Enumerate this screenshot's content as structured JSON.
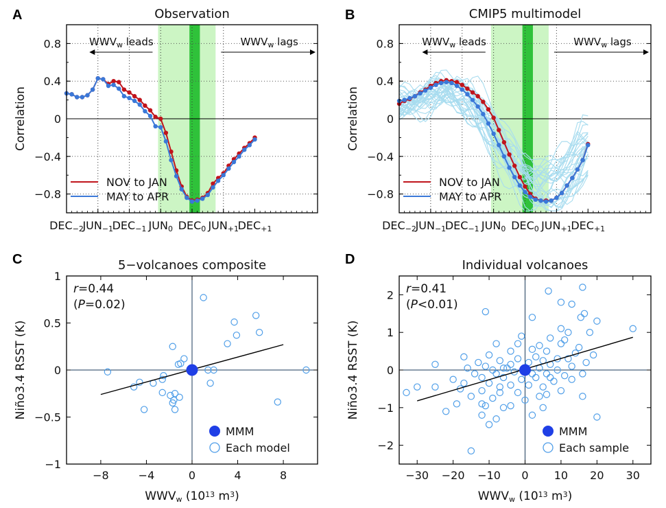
{
  "colors": {
    "nov_jan": "#c0141c",
    "may_apr": "#3a78d8",
    "models": "#a8dcef",
    "shade_light": "#ccf5c4",
    "shade_dark": "#2fc23a",
    "mmm": "#1f3fe6",
    "circle": "#4f9ee8",
    "axis": "#000000"
  },
  "chart_data": [
    {
      "id": "A",
      "type": "line",
      "panel_label": "A",
      "title": "Observation",
      "ylabel": "Correlation",
      "ylim": [
        -1,
        1
      ],
      "yticks": [
        -0.8,
        -0.4,
        0,
        0.4,
        0.8
      ],
      "ytick_labels": [
        "−0.8",
        "−0.4",
        "0",
        "0.4",
        "0.8"
      ],
      "xlim": [
        0,
        48
      ],
      "xticks": [
        0,
        6,
        12,
        18,
        24,
        30,
        36
      ],
      "xtick_labels": [
        [
          "DEC",
          "−2"
        ],
        [
          "JUN",
          "−1"
        ],
        [
          "DEC",
          "−1"
        ],
        [
          "JUN",
          "0"
        ],
        [
          "DEC",
          "0"
        ],
        [
          "JUN",
          "+1"
        ],
        [
          "DEC",
          "+1"
        ]
      ],
      "shade_light": [
        17.5,
        28.5
      ],
      "shade_dark": [
        23.5,
        25.5
      ],
      "grid": true,
      "annotation_leads": "WWV_w leads",
      "annotation_lags": "WWV_w lags",
      "legend": [
        "NOV to JAN",
        "MAY to APR"
      ],
      "legend_position": "bottom-left",
      "series": [
        {
          "name": "NOV to JAN",
          "color_key": "nov_jan",
          "x": [
            0,
            1,
            2,
            3,
            4,
            5,
            6,
            7,
            8,
            9,
            10,
            11,
            12,
            13,
            14,
            15,
            16,
            17,
            18,
            19,
            20,
            21,
            22,
            23,
            24,
            25,
            26,
            27,
            28,
            29,
            30,
            31,
            32,
            33,
            34,
            35,
            36
          ],
          "values": [
            0.27,
            0.26,
            0.23,
            0.23,
            0.25,
            0.31,
            0.43,
            0.42,
            0.37,
            0.4,
            0.39,
            0.31,
            0.28,
            0.24,
            0.2,
            0.14,
            0.09,
            0.02,
            0.0,
            -0.15,
            -0.35,
            -0.55,
            -0.72,
            -0.83,
            -0.87,
            -0.86,
            -0.84,
            -0.79,
            -0.69,
            -0.63,
            -0.58,
            -0.5,
            -0.43,
            -0.37,
            -0.31,
            -0.26,
            -0.2
          ]
        },
        {
          "name": "MAY to APR",
          "color_key": "may_apr",
          "x": [
            0,
            1,
            2,
            3,
            4,
            5,
            6,
            7,
            8,
            9,
            10,
            11,
            12,
            13,
            14,
            15,
            16,
            17,
            18,
            19,
            20,
            21,
            22,
            23,
            24,
            25,
            26,
            27,
            28,
            29,
            30,
            31,
            32,
            33,
            34,
            35,
            36
          ],
          "values": [
            0.27,
            0.26,
            0.23,
            0.23,
            0.25,
            0.31,
            0.43,
            0.42,
            0.35,
            0.36,
            0.32,
            0.24,
            0.22,
            0.19,
            0.15,
            0.08,
            0.03,
            -0.08,
            -0.09,
            -0.24,
            -0.44,
            -0.61,
            -0.75,
            -0.84,
            -0.88,
            -0.87,
            -0.85,
            -0.81,
            -0.73,
            -0.66,
            -0.6,
            -0.53,
            -0.46,
            -0.4,
            -0.33,
            -0.28,
            -0.22
          ]
        }
      ]
    },
    {
      "id": "B",
      "type": "line",
      "panel_label": "B",
      "title": "CMIP5 multimodel",
      "ylabel": "Correlation",
      "ylim": [
        -1,
        1
      ],
      "yticks": [
        -0.8,
        -0.4,
        0,
        0.4,
        0.8
      ],
      "ytick_labels": [
        "−0.8",
        "−0.4",
        "0",
        "0.4",
        "0.8"
      ],
      "xlim": [
        0,
        48
      ],
      "xticks": [
        0,
        6,
        12,
        18,
        24,
        30,
        36
      ],
      "xtick_labels": [
        [
          "DEC",
          "−2"
        ],
        [
          "JUN",
          "−1"
        ],
        [
          "DEC",
          "−1"
        ],
        [
          "JUN",
          "0"
        ],
        [
          "DEC",
          "0"
        ],
        [
          "JUN",
          "+1"
        ],
        [
          "DEC",
          "+1"
        ]
      ],
      "shade_light": [
        17.5,
        28.5
      ],
      "shade_dark": [
        23.5,
        25.5
      ],
      "grid": true,
      "annotation_leads": "WWV_w leads",
      "annotation_lags": "WWV_w lags",
      "legend": [
        "NOV to JAN",
        "MAY to APR"
      ],
      "legend_position": "bottom-left",
      "series": [
        {
          "name": "NOV to JAN",
          "color_key": "nov_jan",
          "x": [
            0,
            1,
            2,
            3,
            4,
            5,
            6,
            7,
            8,
            9,
            10,
            11,
            12,
            13,
            14,
            15,
            16,
            17,
            18,
            19,
            20,
            21,
            22,
            23,
            24,
            25,
            26,
            27,
            28,
            29,
            30,
            31,
            32,
            33,
            34,
            35,
            36
          ],
          "values": [
            0.16,
            0.19,
            0.21,
            0.24,
            0.28,
            0.31,
            0.35,
            0.38,
            0.4,
            0.41,
            0.4,
            0.39,
            0.36,
            0.32,
            0.28,
            0.24,
            0.18,
            0.1,
            0.01,
            -0.12,
            -0.25,
            -0.38,
            -0.5,
            -0.62,
            -0.72,
            -0.8,
            -0.85,
            -0.87,
            -0.87,
            -0.87,
            -0.84,
            -0.79,
            -0.71,
            -0.63,
            -0.54,
            -0.44,
            -0.27
          ]
        },
        {
          "name": "MAY to APR",
          "color_key": "may_apr",
          "x": [
            0,
            1,
            2,
            3,
            4,
            5,
            6,
            7,
            8,
            9,
            10,
            11,
            12,
            13,
            14,
            15,
            16,
            17,
            18,
            19,
            20,
            21,
            22,
            23,
            24,
            25,
            26,
            27,
            28,
            29,
            30,
            31,
            32,
            33,
            34,
            35,
            36
          ],
          "values": [
            0.19,
            0.2,
            0.22,
            0.24,
            0.27,
            0.3,
            0.33,
            0.36,
            0.38,
            0.39,
            0.38,
            0.35,
            0.31,
            0.26,
            0.2,
            0.13,
            0.05,
            -0.05,
            -0.16,
            -0.28,
            -0.4,
            -0.52,
            -0.62,
            -0.71,
            -0.78,
            -0.83,
            -0.86,
            -0.87,
            -0.88,
            -0.87,
            -0.84,
            -0.79,
            -0.71,
            -0.63,
            -0.54,
            -0.44,
            -0.28
          ]
        }
      ],
      "model_members": 30
    },
    {
      "id": "C",
      "type": "scatter",
      "panel_label": "C",
      "title": "5−volcanoes composite",
      "xlabel_main": "WWV",
      "xlabel_sub": "w",
      "xlabel_units_pre": "(10",
      "xlabel_units_exp": "13",
      "xlabel_units_post": " m",
      "xlabel_units_exp2": "3",
      "xlabel_units_close": ")",
      "ylabel": "Niño3.4 RSST (K)",
      "xlim": [
        -11,
        11
      ],
      "ylim": [
        -1,
        1
      ],
      "xticks": [
        -8,
        -4,
        0,
        4,
        8
      ],
      "xtick_labels": [
        "−8",
        "−4",
        "0",
        "4",
        "8"
      ],
      "yticks": [
        -1,
        -0.5,
        0,
        0.5,
        1
      ],
      "ytick_labels": [
        "−1",
        "−0.5",
        "0",
        "0.5",
        "1"
      ],
      "stat_r": "0.44",
      "stat_p_op": "=",
      "stat_p": "0.02",
      "legend": [
        "MMM",
        "Each model"
      ],
      "legend_position": "bottom-right",
      "fit": {
        "x": [
          -8,
          8
        ],
        "y": [
          -0.26,
          0.27
        ]
      },
      "mmm": {
        "x": 0,
        "y": 0
      },
      "points": [
        {
          "x": 1.0,
          "y": 0.77
        },
        {
          "x": 5.6,
          "y": 0.58
        },
        {
          "x": 3.7,
          "y": 0.51
        },
        {
          "x": 5.9,
          "y": 0.4
        },
        {
          "x": 3.9,
          "y": 0.37
        },
        {
          "x": 3.1,
          "y": 0.28
        },
        {
          "x": -1.7,
          "y": 0.25
        },
        {
          "x": -0.7,
          "y": 0.12
        },
        {
          "x": -1.2,
          "y": 0.06
        },
        {
          "x": -1.0,
          "y": 0.07
        },
        {
          "x": 1.4,
          "y": 0.0
        },
        {
          "x": 1.9,
          "y": 0.0
        },
        {
          "x": -7.4,
          "y": -0.02
        },
        {
          "x": 10.0,
          "y": 0.0
        },
        {
          "x": -2.5,
          "y": -0.06
        },
        {
          "x": -2.6,
          "y": -0.1
        },
        {
          "x": -4.6,
          "y": -0.13
        },
        {
          "x": -3.4,
          "y": -0.14
        },
        {
          "x": -5.1,
          "y": -0.18
        },
        {
          "x": 1.6,
          "y": -0.14
        },
        {
          "x": -2.6,
          "y": -0.24
        },
        {
          "x": -1.5,
          "y": -0.25
        },
        {
          "x": -1.9,
          "y": -0.27
        },
        {
          "x": -1.1,
          "y": -0.29
        },
        {
          "x": -1.6,
          "y": -0.32
        },
        {
          "x": -1.7,
          "y": -0.35
        },
        {
          "x": 7.5,
          "y": -0.34
        },
        {
          "x": -4.2,
          "y": -0.42
        },
        {
          "x": -1.5,
          "y": -0.42
        }
      ]
    },
    {
      "id": "D",
      "type": "scatter",
      "panel_label": "D",
      "title": "Individual volcanoes",
      "xlabel_main": "WWV",
      "xlabel_sub": "w",
      "xlabel_units_pre": "(10",
      "xlabel_units_exp": "13",
      "xlabel_units_post": " m",
      "xlabel_units_exp2": "3",
      "xlabel_units_close": ")",
      "ylabel": "Niño3.4 RSST (K)",
      "xlim": [
        -35,
        35
      ],
      "ylim": [
        -2.5,
        2.5
      ],
      "xticks": [
        -30,
        -20,
        -10,
        0,
        10,
        20,
        30
      ],
      "xtick_labels": [
        "−30",
        "−20",
        "−10",
        "0",
        "10",
        "20",
        "30"
      ],
      "yticks": [
        -2,
        -1,
        0,
        1,
        2
      ],
      "ytick_labels": [
        "−2",
        "−1",
        "0",
        "1",
        "2"
      ],
      "stat_r": "0.41",
      "stat_p_op": "<",
      "stat_p": "0.01",
      "legend": [
        "MMM",
        "Each sample"
      ],
      "legend_position": "bottom-right",
      "fit": {
        "x": [
          -30,
          30
        ],
        "y": [
          -0.82,
          0.87
        ]
      },
      "mmm": {
        "x": 0,
        "y": 0
      },
      "points": [
        {
          "x": 16,
          "y": 2.2
        },
        {
          "x": 6.5,
          "y": 2.1
        },
        {
          "x": 10,
          "y": 1.8
        },
        {
          "x": 13,
          "y": 1.75
        },
        {
          "x": 16.5,
          "y": 1.5
        },
        {
          "x": -11,
          "y": 1.55
        },
        {
          "x": 2,
          "y": 1.4
        },
        {
          "x": 15.5,
          "y": 1.4
        },
        {
          "x": 20,
          "y": 1.3
        },
        {
          "x": 10,
          "y": 1.1
        },
        {
          "x": 30,
          "y": 1.1
        },
        {
          "x": -1,
          "y": 0.9
        },
        {
          "x": 12,
          "y": 1.0
        },
        {
          "x": 18,
          "y": 1.0
        },
        {
          "x": 7,
          "y": 0.85
        },
        {
          "x": -8,
          "y": 0.7
        },
        {
          "x": 4,
          "y": 0.65
        },
        {
          "x": 10,
          "y": 0.7
        },
        {
          "x": 15,
          "y": 0.6
        },
        {
          "x": -4,
          "y": 0.5
        },
        {
          "x": 2,
          "y": 0.55
        },
        {
          "x": 6,
          "y": 0.5
        },
        {
          "x": 14,
          "y": 0.45
        },
        {
          "x": 19,
          "y": 0.4
        },
        {
          "x": -10,
          "y": 0.4
        },
        {
          "x": -17,
          "y": 0.35
        },
        {
          "x": 3,
          "y": 0.35
        },
        {
          "x": 9,
          "y": 0.3
        },
        {
          "x": -13,
          "y": 0.2
        },
        {
          "x": -7,
          "y": 0.25
        },
        {
          "x": -2,
          "y": 0.3
        },
        {
          "x": 5,
          "y": 0.25
        },
        {
          "x": 12,
          "y": 0.3
        },
        {
          "x": 17,
          "y": 0.2
        },
        {
          "x": -25,
          "y": 0.15
        },
        {
          "x": -11,
          "y": 0.1
        },
        {
          "x": -4,
          "y": 0.15
        },
        {
          "x": 1,
          "y": 0.2
        },
        {
          "x": 7,
          "y": 0.15
        },
        {
          "x": 13,
          "y": 0.1
        },
        {
          "x": -6,
          "y": 0.05
        },
        {
          "x": 0,
          "y": 0.05
        },
        {
          "x": 4,
          "y": 0.05
        },
        {
          "x": 9,
          "y": 0.0
        },
        {
          "x": -9,
          "y": 0.0
        },
        {
          "x": -14,
          "y": -0.1
        },
        {
          "x": -8,
          "y": -0.1
        },
        {
          "x": -3,
          "y": -0.05
        },
        {
          "x": 2,
          "y": -0.1
        },
        {
          "x": 6,
          "y": -0.1
        },
        {
          "x": 11,
          "y": -0.15
        },
        {
          "x": 16,
          "y": -0.1
        },
        {
          "x": -20,
          "y": -0.25
        },
        {
          "x": -12,
          "y": -0.2
        },
        {
          "x": -6,
          "y": -0.2
        },
        {
          "x": -1,
          "y": -0.25
        },
        {
          "x": 3,
          "y": -0.2
        },
        {
          "x": 8,
          "y": -0.3
        },
        {
          "x": 13,
          "y": -0.25
        },
        {
          "x": -17,
          "y": -0.35
        },
        {
          "x": -10,
          "y": -0.35
        },
        {
          "x": -4,
          "y": -0.4
        },
        {
          "x": 1,
          "y": -0.4
        },
        {
          "x": 5,
          "y": -0.45
        },
        {
          "x": -33,
          "y": -0.6
        },
        {
          "x": -30,
          "y": -0.45
        },
        {
          "x": -25,
          "y": -0.45
        },
        {
          "x": -18,
          "y": -0.5
        },
        {
          "x": -12,
          "y": -0.55
        },
        {
          "x": -7,
          "y": -0.6
        },
        {
          "x": -2,
          "y": -0.6
        },
        {
          "x": 4,
          "y": -0.7
        },
        {
          "x": -15,
          "y": -0.7
        },
        {
          "x": -9,
          "y": -0.75
        },
        {
          "x": 0,
          "y": -0.8
        },
        {
          "x": 16,
          "y": -0.7
        },
        {
          "x": -19,
          "y": -0.9
        },
        {
          "x": -11,
          "y": -0.95
        },
        {
          "x": -4,
          "y": -0.95
        },
        {
          "x": 5,
          "y": -1.0
        },
        {
          "x": -22,
          "y": -1.1
        },
        {
          "x": -12,
          "y": -1.2
        },
        {
          "x": 2,
          "y": -1.2
        },
        {
          "x": 20,
          "y": -1.25
        },
        {
          "x": -8,
          "y": -1.3
        },
        {
          "x": -10,
          "y": -1.45
        },
        {
          "x": -15,
          "y": -2.15
        },
        {
          "x": -12,
          "y": -0.9
        },
        {
          "x": -6,
          "y": -1.0
        },
        {
          "x": 6,
          "y": -0.65
        },
        {
          "x": 10,
          "y": -0.55
        },
        {
          "x": -16,
          "y": 0.05
        },
        {
          "x": -2,
          "y": 0.7
        },
        {
          "x": 11,
          "y": 0.8
        },
        {
          "x": -7,
          "y": -0.45
        },
        {
          "x": -5,
          "y": 0.05
        },
        {
          "x": 7,
          "y": -0.2
        }
      ]
    }
  ]
}
